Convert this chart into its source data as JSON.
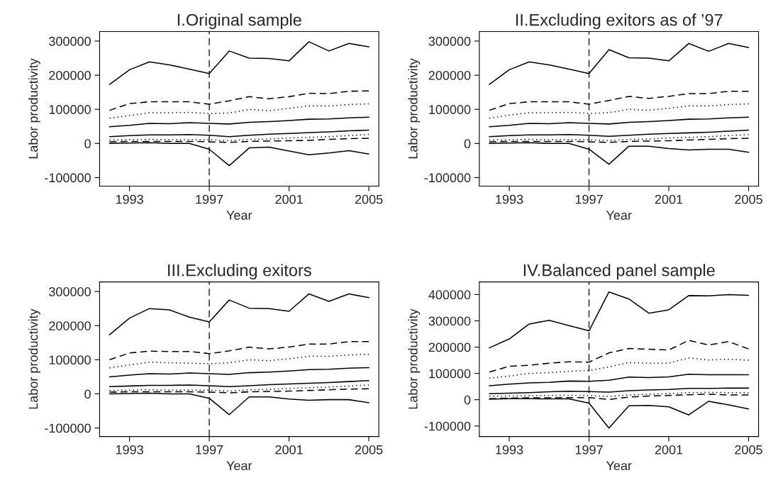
{
  "chart_data": [
    {
      "type": "line",
      "title": "I.Original sample",
      "xlabel": "Year",
      "ylabel": "Labor productivity",
      "grid": false,
      "legend": false,
      "x": [
        1992,
        1993,
        1994,
        1995,
        1996,
        1997,
        1998,
        1999,
        2000,
        2001,
        2002,
        2003,
        2004,
        2005
      ],
      "xlim": [
        1991.5,
        2005.5
      ],
      "xticks": [
        1993,
        1997,
        2001,
        2005
      ],
      "ylim": [
        -125000,
        328000
      ],
      "yticks": [
        -100000,
        0,
        100000,
        200000,
        300000
      ],
      "ref_lines": [
        {
          "axis": "x",
          "value": 1997,
          "color": "#000000",
          "line_style": "dashed"
        }
      ],
      "series": [
        {
          "color": "#000000",
          "line_style": "solid",
          "values": [
            173000,
            216000,
            239000,
            230000,
            218000,
            205000,
            271000,
            250000,
            249000,
            242000,
            298000,
            271000,
            293000,
            283000
          ]
        },
        {
          "color": "#000000",
          "line_style": "dashed",
          "values": [
            97000,
            117000,
            122000,
            122000,
            122000,
            115000,
            125000,
            137000,
            131000,
            137000,
            147000,
            146000,
            153000,
            154000
          ]
        },
        {
          "color": "#000000",
          "line_style": "dotted",
          "values": [
            74000,
            82000,
            90000,
            90000,
            91000,
            88000,
            89000,
            100000,
            96000,
            103000,
            110000,
            110000,
            114000,
            116000
          ]
        },
        {
          "color": "#000000",
          "line_style": "solid",
          "values": [
            49000,
            53000,
            59000,
            58000,
            61000,
            59000,
            57000,
            62000,
            64000,
            67000,
            71000,
            72000,
            75000,
            77000
          ]
        },
        {
          "color": "#000000",
          "line_style": "solid",
          "values": [
            20000,
            23000,
            25000,
            25000,
            26000,
            24000,
            20000,
            24000,
            27000,
            29000,
            32000,
            34000,
            37000,
            39000
          ]
        },
        {
          "color": "#000000",
          "line_style": "dotted",
          "values": [
            10000,
            11000,
            12000,
            11000,
            11000,
            11000,
            8000,
            12000,
            13000,
            16000,
            18000,
            20000,
            23000,
            26000
          ]
        },
        {
          "color": "#000000",
          "line_style": "dashed",
          "values": [
            5000,
            6000,
            6000,
            6000,
            6000,
            5000,
            3000,
            6000,
            7000,
            8000,
            9000,
            12000,
            14000,
            15000
          ]
        },
        {
          "color": "#000000",
          "line_style": "solid",
          "values": [
            0,
            1000,
            2000,
            0,
            0,
            -17000,
            -65000,
            -13000,
            -11000,
            -22000,
            -33000,
            -28000,
            -21000,
            -31000
          ]
        }
      ]
    },
    {
      "type": "line",
      "title": "II.Excluding exitors as of ’97",
      "xlabel": "Year",
      "ylabel": "Labor productivity",
      "grid": false,
      "legend": false,
      "x": [
        1992,
        1993,
        1994,
        1995,
        1996,
        1997,
        1998,
        1999,
        2000,
        2001,
        2002,
        2003,
        2004,
        2005
      ],
      "xlim": [
        1991.5,
        2005.5
      ],
      "xticks": [
        1993,
        1997,
        2001,
        2005
      ],
      "ylim": [
        -125000,
        328000
      ],
      "yticks": [
        -100000,
        0,
        100000,
        200000,
        300000
      ],
      "ref_lines": [
        {
          "axis": "x",
          "value": 1997,
          "color": "#000000",
          "line_style": "dashed"
        }
      ],
      "series": [
        {
          "color": "#000000",
          "line_style": "solid",
          "values": [
            173000,
            216000,
            239000,
            230000,
            218000,
            205000,
            275000,
            251000,
            250000,
            242000,
            293000,
            270000,
            293000,
            281000
          ]
        },
        {
          "color": "#000000",
          "line_style": "dashed",
          "values": [
            97000,
            117000,
            122000,
            122000,
            122000,
            115000,
            126000,
            138000,
            132000,
            138000,
            146000,
            146000,
            153000,
            153000
          ]
        },
        {
          "color": "#000000",
          "line_style": "dotted",
          "values": [
            74000,
            83000,
            90000,
            90000,
            91000,
            88000,
            90000,
            100000,
            97000,
            103000,
            110000,
            110000,
            114000,
            116000
          ]
        },
        {
          "color": "#000000",
          "line_style": "solid",
          "values": [
            49000,
            53000,
            59000,
            58000,
            61000,
            59000,
            57000,
            62000,
            64000,
            67000,
            71000,
            72000,
            75000,
            77000
          ]
        },
        {
          "color": "#000000",
          "line_style": "solid",
          "values": [
            20000,
            23000,
            25000,
            25000,
            26000,
            24000,
            21000,
            24000,
            27000,
            29000,
            31000,
            33000,
            36000,
            39000
          ]
        },
        {
          "color": "#000000",
          "line_style": "dotted",
          "values": [
            10000,
            11000,
            12000,
            11000,
            11000,
            11000,
            8000,
            12000,
            13000,
            16000,
            18000,
            20000,
            23000,
            26000
          ]
        },
        {
          "color": "#000000",
          "line_style": "dashed",
          "values": [
            5000,
            6000,
            6000,
            6000,
            6000,
            5000,
            3000,
            6000,
            7000,
            8000,
            10000,
            12000,
            14000,
            15000
          ]
        },
        {
          "color": "#000000",
          "line_style": "solid",
          "values": [
            0,
            1000,
            2000,
            0,
            0,
            -17000,
            -61000,
            -8000,
            -8000,
            -15000,
            -19000,
            -17000,
            -17000,
            -26000
          ]
        }
      ]
    },
    {
      "type": "line",
      "title": "III.Excluding exitors",
      "xlabel": "Year",
      "ylabel": "Labor productivity",
      "grid": false,
      "legend": false,
      "x": [
        1992,
        1993,
        1994,
        1995,
        1996,
        1997,
        1998,
        1999,
        2000,
        2001,
        2002,
        2003,
        2004,
        2005
      ],
      "xlim": [
        1991.5,
        2005.5
      ],
      "xticks": [
        1993,
        1997,
        2001,
        2005
      ],
      "ylim": [
        -125000,
        328000
      ],
      "yticks": [
        -100000,
        0,
        100000,
        200000,
        300000
      ],
      "ref_lines": [
        {
          "axis": "x",
          "value": 1997,
          "color": "#000000",
          "line_style": "dashed"
        }
      ],
      "series": [
        {
          "color": "#000000",
          "line_style": "solid",
          "values": [
            173000,
            222000,
            250000,
            246000,
            225000,
            211000,
            275000,
            251000,
            250000,
            242000,
            293000,
            271000,
            293000,
            282000
          ]
        },
        {
          "color": "#000000",
          "line_style": "dashed",
          "values": [
            100000,
            120000,
            125000,
            124000,
            124000,
            118000,
            126000,
            137000,
            132000,
            137000,
            146000,
            146000,
            153000,
            153000
          ]
        },
        {
          "color": "#000000",
          "line_style": "dotted",
          "values": [
            76000,
            85000,
            93000,
            91000,
            90000,
            88000,
            91000,
            100000,
            97000,
            103000,
            110000,
            110000,
            114000,
            116000
          ]
        },
        {
          "color": "#000000",
          "line_style": "solid",
          "values": [
            50000,
            55000,
            59000,
            58000,
            61000,
            59000,
            57000,
            62000,
            64000,
            67000,
            71000,
            72000,
            75000,
            77000
          ]
        },
        {
          "color": "#000000",
          "line_style": "solid",
          "values": [
            21000,
            23000,
            25000,
            25000,
            26000,
            24000,
            21000,
            24000,
            27000,
            29000,
            31000,
            33000,
            36000,
            39000
          ]
        },
        {
          "color": "#000000",
          "line_style": "dotted",
          "values": [
            10000,
            11000,
            12000,
            11000,
            11000,
            11000,
            8000,
            12000,
            13000,
            16000,
            18000,
            20000,
            23000,
            26000
          ]
        },
        {
          "color": "#000000",
          "line_style": "dashed",
          "values": [
            5000,
            6000,
            6000,
            6000,
            6000,
            5000,
            3000,
            6000,
            7000,
            8000,
            10000,
            12000,
            14000,
            15000
          ]
        },
        {
          "color": "#000000",
          "line_style": "solid",
          "values": [
            0,
            1000,
            2000,
            0,
            0,
            -13000,
            -61000,
            -9000,
            -9000,
            -15000,
            -19000,
            -17000,
            -17000,
            -26000
          ]
        }
      ]
    },
    {
      "type": "line",
      "title": "IV.Balanced panel sample",
      "xlabel": "Year",
      "ylabel": "Labor productivity",
      "grid": false,
      "legend": false,
      "x": [
        1992,
        1993,
        1994,
        1995,
        1996,
        1997,
        1998,
        1999,
        2000,
        2001,
        2002,
        2003,
        2004,
        2005
      ],
      "xlim": [
        1991.5,
        2005.5
      ],
      "xticks": [
        1993,
        1997,
        2001,
        2005
      ],
      "ylim": [
        -140000,
        448000
      ],
      "yticks": [
        -100000,
        0,
        100000,
        200000,
        300000,
        400000
      ],
      "ref_lines": [
        {
          "axis": "x",
          "value": 1997,
          "color": "#000000",
          "line_style": "dashed"
        }
      ],
      "series": [
        {
          "color": "#000000",
          "line_style": "solid",
          "values": [
            197000,
            231000,
            288000,
            302000,
            282000,
            262000,
            410000,
            383000,
            329000,
            342000,
            396000,
            395000,
            400000,
            397000
          ]
        },
        {
          "color": "#000000",
          "line_style": "dashed",
          "values": [
            105000,
            127000,
            131000,
            139000,
            144000,
            143000,
            178000,
            195000,
            192000,
            189000,
            226000,
            208000,
            221000,
            193000
          ]
        },
        {
          "color": "#000000",
          "line_style": "dotted",
          "values": [
            82000,
            90000,
            100000,
            103000,
            108000,
            111000,
            125000,
            141000,
            139000,
            139000,
            159000,
            151000,
            154000,
            150000
          ]
        },
        {
          "color": "#000000",
          "line_style": "solid",
          "values": [
            53000,
            59000,
            64000,
            66000,
            71000,
            70000,
            74000,
            86000,
            84000,
            87000,
            97000,
            95000,
            95000,
            95000
          ]
        },
        {
          "color": "#000000",
          "line_style": "solid",
          "values": [
            23000,
            25000,
            27000,
            30000,
            32000,
            31000,
            29000,
            34000,
            37000,
            39000,
            43000,
            43000,
            44000,
            44000
          ]
        },
        {
          "color": "#000000",
          "line_style": "dotted",
          "values": [
            13000,
            14000,
            15000,
            16000,
            17000,
            16000,
            12000,
            18000,
            21000,
            23000,
            27000,
            28000,
            27000,
            27000
          ]
        },
        {
          "color": "#000000",
          "line_style": "dashed",
          "values": [
            4000,
            6000,
            7000,
            7000,
            8000,
            8000,
            1000,
            10000,
            14000,
            16000,
            19000,
            21000,
            18000,
            18000
          ]
        },
        {
          "color": "#000000",
          "line_style": "solid",
          "values": [
            2000,
            4000,
            4000,
            3000,
            3000,
            -13000,
            -108000,
            -23000,
            -22000,
            -27000,
            -58000,
            -6000,
            -20000,
            -35000
          ]
        }
      ]
    }
  ]
}
